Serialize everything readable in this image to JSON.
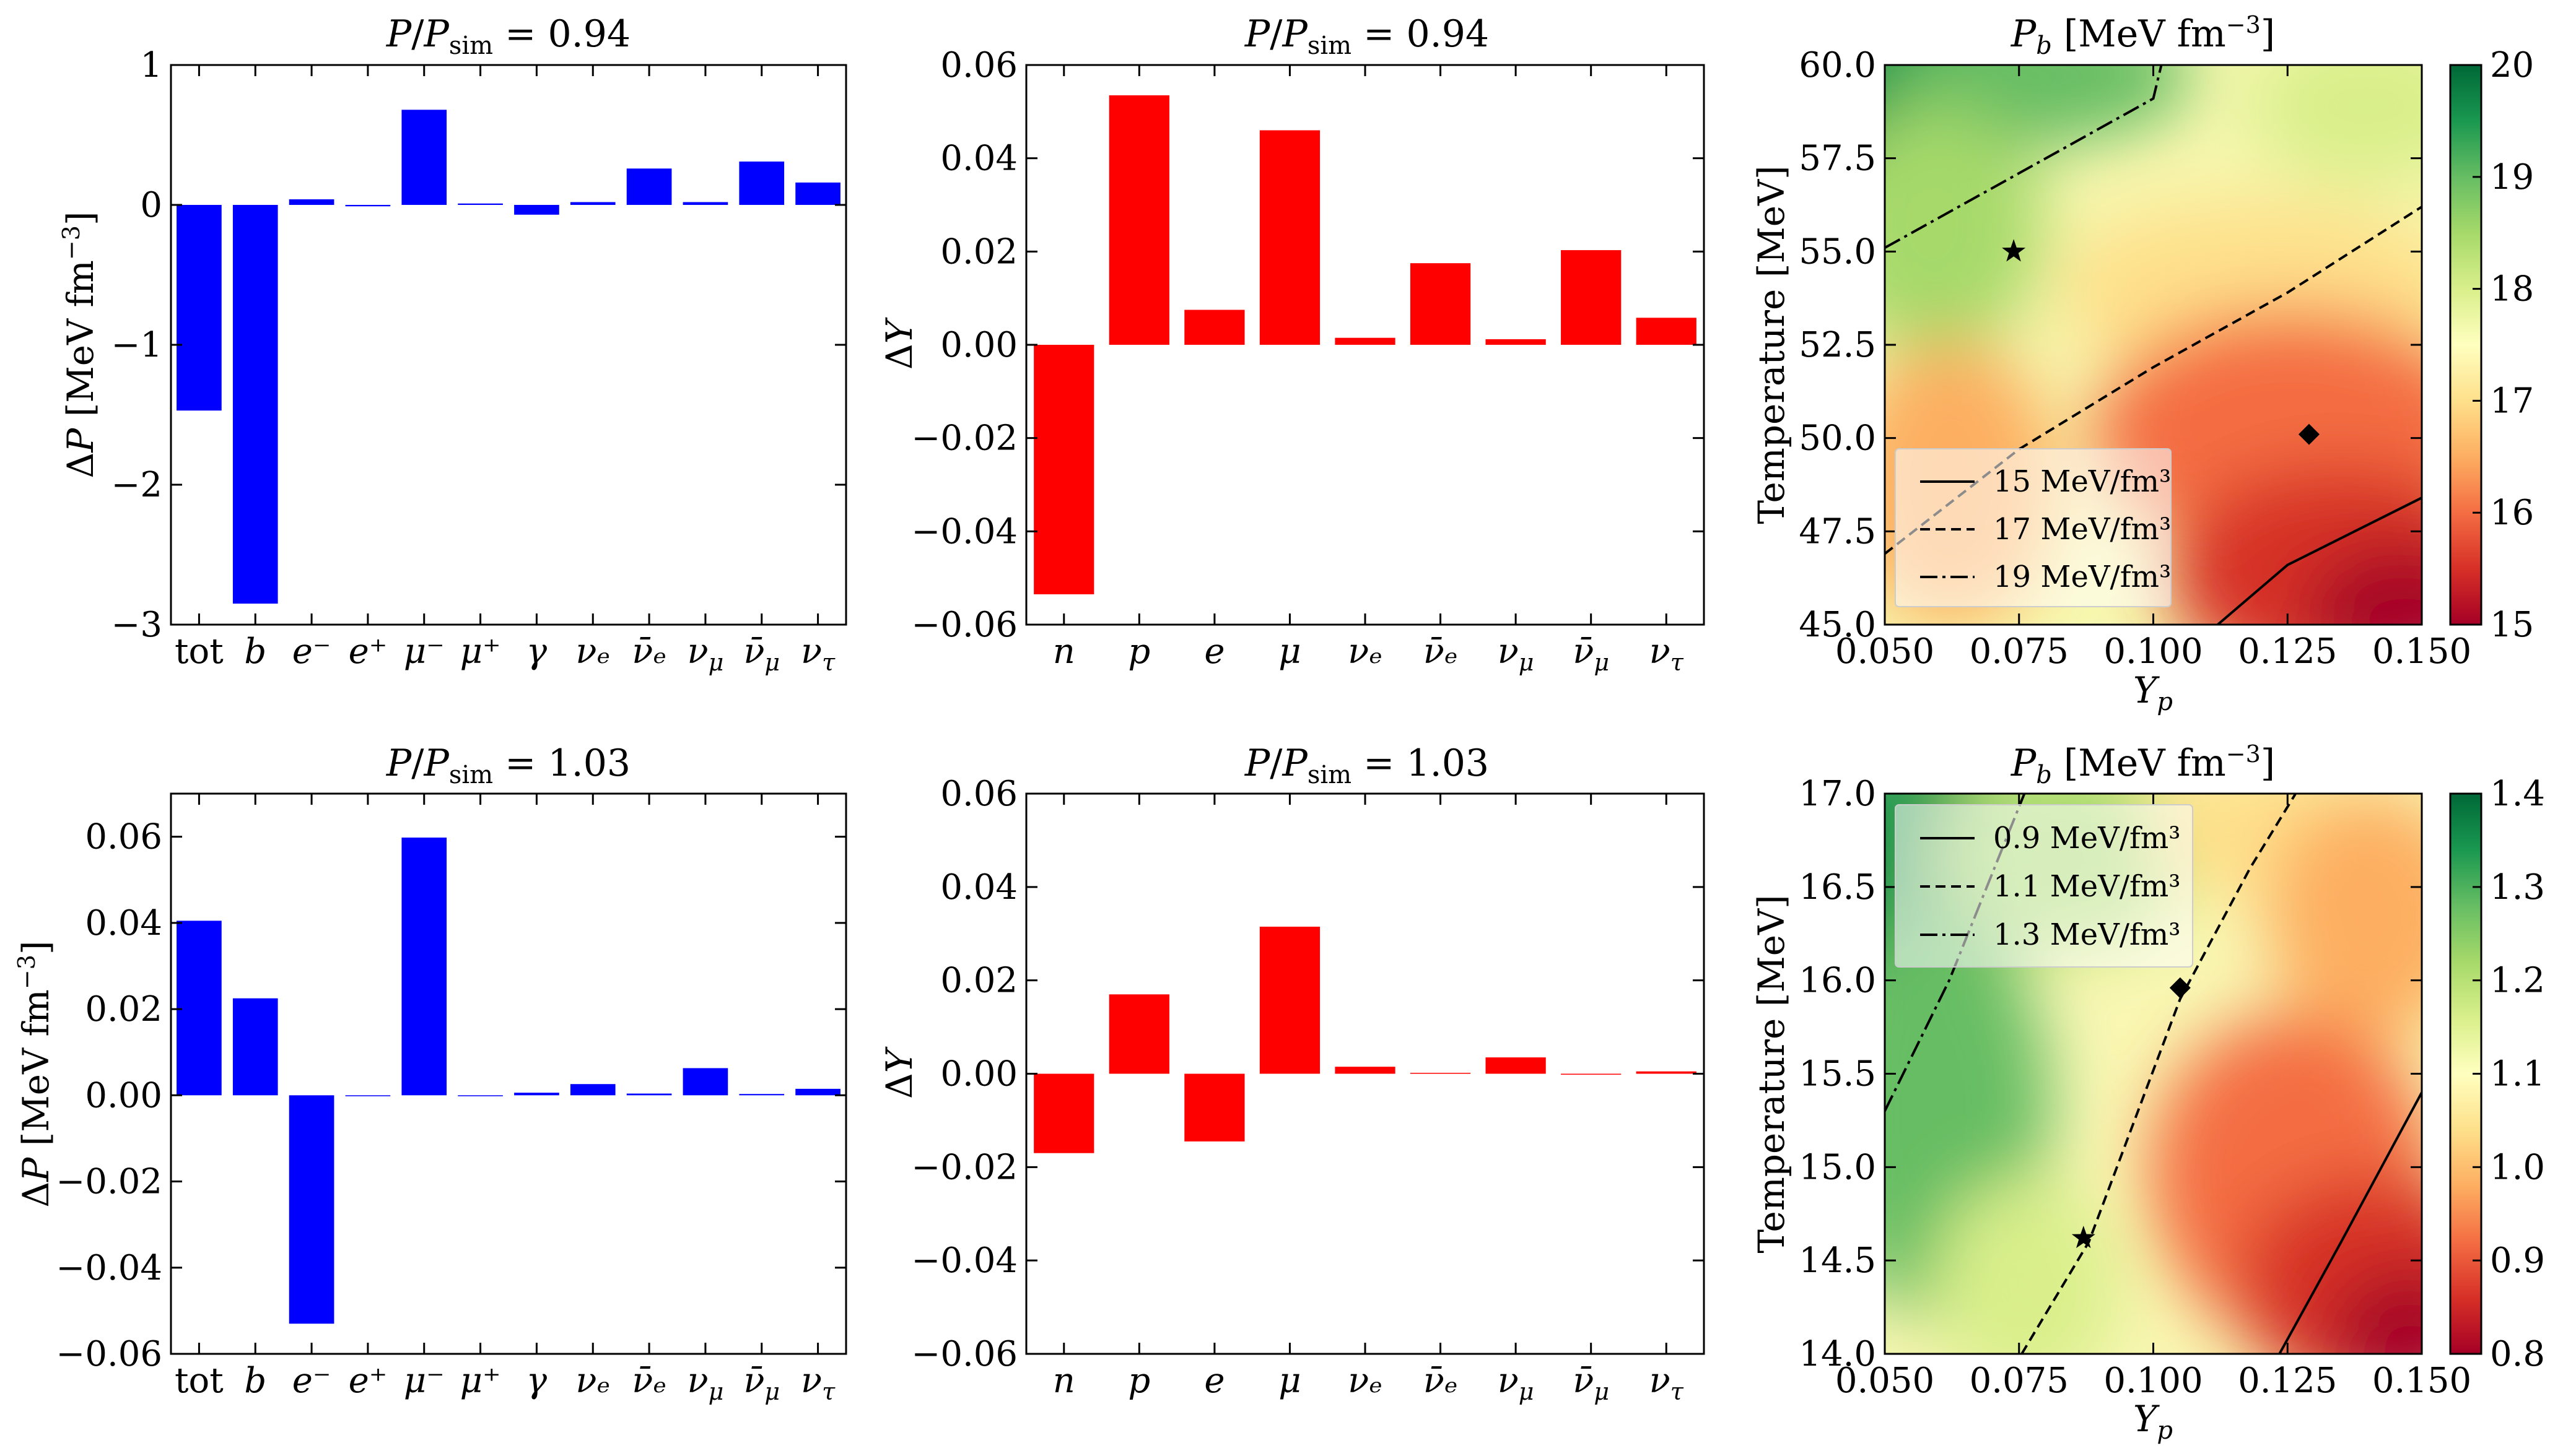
{
  "colors": {
    "bar_pressure": "#0000ff",
    "bar_fraction": "#ff0000",
    "colormap": "RdYlGn"
  },
  "chart_data": [
    {
      "id": "a",
      "type": "bar",
      "title": "P/P_sim = 0.94",
      "ylabel": "ΔP [MeV fm^-3]",
      "ylim": [
        -3,
        1
      ],
      "yticks": [
        "1",
        "0",
        "−1",
        "−2",
        "−3"
      ],
      "yticks_values": [
        1,
        0,
        -1,
        -2,
        -3
      ],
      "categories": [
        "tot",
        "b",
        "e⁻",
        "e⁺",
        "μ⁻",
        "μ⁺",
        "γ",
        "νₑ",
        "ν̄ₑ",
        "ν_μ",
        "ν̄_μ",
        "ν_τ"
      ],
      "values": [
        -1.47,
        -2.85,
        0.04,
        -0.01,
        0.68,
        0.01,
        -0.07,
        0.02,
        0.26,
        0.02,
        0.31,
        0.16
      ],
      "color": "#0000ff"
    },
    {
      "id": "b",
      "type": "bar",
      "title": "P/P_sim = 0.94",
      "ylabel": "ΔY",
      "ylim": [
        -0.06,
        0.06
      ],
      "yticks": [
        "0.06",
        "0.04",
        "0.02",
        "0.00",
        "−0.02",
        "−0.04",
        "−0.06"
      ],
      "yticks_values": [
        0.06,
        0.04,
        0.02,
        0.0,
        -0.02,
        -0.04,
        -0.06
      ],
      "categories": [
        "n",
        "p",
        "e",
        "μ",
        "νₑ",
        "ν̄ₑ",
        "ν_μ",
        "ν̄_μ",
        "ν_τ"
      ],
      "values": [
        -0.0535,
        0.0535,
        0.0075,
        0.046,
        0.0015,
        0.0175,
        0.0012,
        0.0203,
        0.0058
      ],
      "color": "#ff0000"
    },
    {
      "id": "c",
      "type": "heatmap",
      "title": "P_b [MeV fm^-3]",
      "xlabel": "Y_p",
      "ylabel": "Temperature [MeV]",
      "xlim": [
        0.05,
        0.15
      ],
      "ylim": [
        45,
        60
      ],
      "xticks": [
        "0.050",
        "0.075",
        "0.100",
        "0.125",
        "0.150"
      ],
      "xticks_values": [
        0.05,
        0.075,
        0.1,
        0.125,
        0.15
      ],
      "yticks": [
        "60.0",
        "57.5",
        "55.0",
        "52.5",
        "50.0",
        "47.5",
        "45.0"
      ],
      "yticks_values": [
        60,
        57.5,
        55,
        52.5,
        50,
        47.5,
        45
      ],
      "colorbar_range": [
        15,
        20
      ],
      "colorbar_ticks": [
        "20",
        "19",
        "18",
        "17",
        "16",
        "15"
      ],
      "colorbar_ticks_values": [
        20,
        19,
        18,
        17,
        16,
        15
      ],
      "contours": [
        {
          "label": "15 MeV/fm³",
          "style": "solid",
          "points": [
            [
              0.112,
              45.0
            ],
            [
              0.125,
              46.6
            ],
            [
              0.15,
              48.4
            ]
          ]
        },
        {
          "label": "17 MeV/fm³",
          "style": "dashed",
          "points": [
            [
              0.05,
              46.9
            ],
            [
              0.075,
              49.7
            ],
            [
              0.1,
              51.9
            ],
            [
              0.125,
              53.9
            ],
            [
              0.15,
              56.2
            ]
          ]
        },
        {
          "label": "19 MeV/fm³",
          "style": "dashdot",
          "points": [
            [
              0.05,
              55.1
            ],
            [
              0.075,
              57.1
            ],
            [
              0.1,
              59.1
            ],
            [
              0.1015,
              60.0
            ]
          ]
        }
      ],
      "markers": [
        {
          "shape": "star",
          "x": 0.074,
          "y": 55.0
        },
        {
          "shape": "diamond",
          "x": 0.129,
          "y": 50.1
        }
      ],
      "legend_position": "lower-left"
    },
    {
      "id": "d",
      "type": "bar",
      "title": "P/P_sim = 1.03",
      "ylabel": "ΔP [MeV fm^-3]",
      "ylim": [
        -0.06,
        0.07
      ],
      "yticks": [
        "0.06",
        "0.04",
        "0.02",
        "0.00",
        "−0.02",
        "−0.04",
        "−0.06"
      ],
      "yticks_values": [
        0.06,
        0.04,
        0.02,
        0.0,
        -0.02,
        -0.04,
        -0.06
      ],
      "categories": [
        "tot",
        "b",
        "e⁻",
        "e⁺",
        "μ⁻",
        "μ⁺",
        "γ",
        "νₑ",
        "ν̄ₑ",
        "ν_μ",
        "ν̄_μ",
        "ν_τ"
      ],
      "values": [
        0.0405,
        0.0225,
        -0.053,
        0.0,
        0.0598,
        0.0,
        0.0006,
        0.0026,
        0.0004,
        0.0063,
        0.0003,
        0.0015
      ],
      "color": "#0000ff"
    },
    {
      "id": "e",
      "type": "bar",
      "title": "P/P_sim = 1.03",
      "ylabel": "ΔY",
      "ylim": [
        -0.06,
        0.06
      ],
      "yticks": [
        "0.06",
        "0.04",
        "0.02",
        "0.00",
        "−0.02",
        "−0.04",
        "−0.06"
      ],
      "yticks_values": [
        0.06,
        0.04,
        0.02,
        0.0,
        -0.02,
        -0.04,
        -0.06
      ],
      "categories": [
        "n",
        "p",
        "e",
        "μ",
        "νₑ",
        "ν̄ₑ",
        "ν_μ",
        "ν̄_μ",
        "ν_τ"
      ],
      "values": [
        -0.017,
        0.017,
        -0.0145,
        0.0315,
        0.0015,
        0.0002,
        0.0035,
        0.0,
        0.0005
      ],
      "color": "#ff0000"
    },
    {
      "id": "f",
      "type": "heatmap",
      "title": "P_b [MeV fm^-3]",
      "xlabel": "Y_p",
      "ylabel": "Temperature [MeV]",
      "xlim": [
        0.05,
        0.15
      ],
      "ylim": [
        14,
        17
      ],
      "xticks": [
        "0.050",
        "0.075",
        "0.100",
        "0.125",
        "0.150"
      ],
      "xticks_values": [
        0.05,
        0.075,
        0.1,
        0.125,
        0.15
      ],
      "yticks": [
        "17.0",
        "16.5",
        "16.0",
        "15.5",
        "15.0",
        "14.5",
        "14.0"
      ],
      "yticks_values": [
        17,
        16.5,
        16,
        15.5,
        15,
        14.5,
        14
      ],
      "colorbar_range": [
        0.8,
        1.4
      ],
      "colorbar_ticks": [
        "1.4",
        "1.3",
        "1.2",
        "1.1",
        "1.0",
        "0.9",
        "0.8"
      ],
      "colorbar_ticks_values": [
        1.4,
        1.3,
        1.2,
        1.1,
        1.0,
        0.9,
        0.8
      ],
      "contours": [
        {
          "label": "0.9 MeV/fm³",
          "style": "solid",
          "points": [
            [
              0.1235,
              14.0
            ],
            [
              0.135,
              14.6
            ],
            [
              0.15,
              15.4
            ]
          ]
        },
        {
          "label": "1.1 MeV/fm³",
          "style": "dashed",
          "points": [
            [
              0.0755,
              14.0
            ],
            [
              0.088,
              14.6
            ],
            [
              0.105,
              15.9
            ],
            [
              0.118,
              16.6
            ],
            [
              0.1265,
              17.0
            ]
          ]
        },
        {
          "label": "1.3 MeV/fm³",
          "style": "dashdot",
          "points": [
            [
              0.05,
              15.3
            ],
            [
              0.062,
              16.0
            ],
            [
              0.076,
              17.0
            ]
          ]
        }
      ],
      "markers": [
        {
          "shape": "star",
          "x": 0.087,
          "y": 14.62
        },
        {
          "shape": "diamond",
          "x": 0.105,
          "y": 15.96
        }
      ],
      "legend_position": "upper-left"
    }
  ]
}
